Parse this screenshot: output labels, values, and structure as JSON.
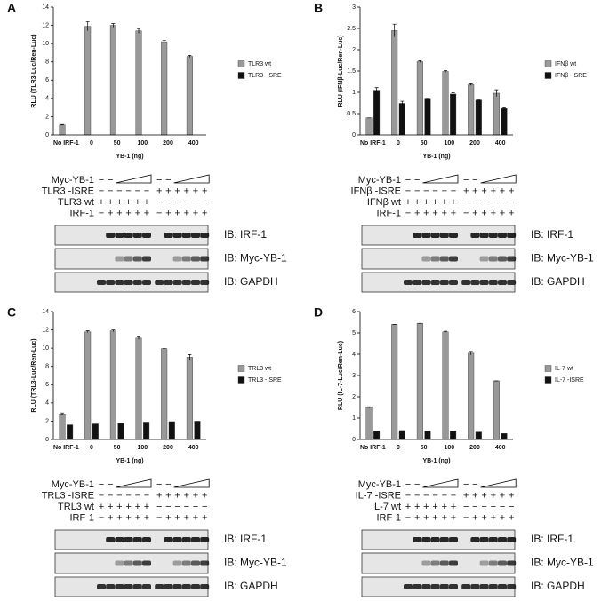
{
  "chart_data": [
    {
      "type": "bar",
      "x_label": "YB-1 (ng)",
      "y_label": "RLU (TLR3-Luc/Ren-Luc)",
      "categories": [
        "No IRF-1",
        "0",
        "50",
        "100",
        "200",
        "400"
      ],
      "series": [
        {
          "name": "TLR3 wt",
          "color": "#999999",
          "values": [
            1.1,
            11.9,
            12.0,
            11.4,
            10.2,
            8.6
          ],
          "errors": [
            0.05,
            0.5,
            0.2,
            0.25,
            0.15,
            0.1
          ]
        },
        {
          "name": "TLR3 -ISRE",
          "color": "#111111",
          "values": [
            null,
            null,
            null,
            null,
            null,
            null
          ]
        }
      ],
      "ylim": [
        0,
        14
      ],
      "yticks": [
        0,
        2,
        4,
        6,
        8,
        10,
        12,
        14
      ]
    },
    {
      "type": "bar",
      "x_label": "YB-1 (ng)",
      "y_label": "RLU (IFNβ-Luc/Ren-Luc)",
      "categories": [
        "No IRF-1",
        "0",
        "50",
        "100",
        "200",
        "400"
      ],
      "series": [
        {
          "name": "IFNβ wt",
          "color": "#999999",
          "values": [
            0.4,
            2.45,
            1.72,
            1.49,
            1.18,
            0.98
          ],
          "errors": [
            0,
            0.15,
            0.02,
            0.02,
            0.02,
            0.08
          ]
        },
        {
          "name": "IFNβ -ISRE",
          "color": "#111111",
          "values": [
            1.05,
            0.74,
            0.86,
            0.96,
            0.82,
            0.62
          ],
          "errors": [
            0.06,
            0.05,
            0,
            0.03,
            0,
            0.02
          ]
        }
      ],
      "ylim": [
        0,
        3
      ],
      "yticks": [
        0,
        0.5,
        1,
        1.5,
        2,
        2.5,
        3
      ]
    },
    {
      "type": "bar",
      "x_label": "YB-1 (ng)",
      "y_label": "RLU (TRL3-Luc/Ren-Luc)",
      "categories": [
        "No IRF-1",
        "0",
        "50",
        "100",
        "200",
        "400"
      ],
      "series": [
        {
          "name": "TRL3 wt",
          "color": "#999999",
          "values": [
            2.8,
            11.8,
            11.9,
            11.1,
            9.95,
            9.0
          ],
          "errors": [
            0.1,
            0.1,
            0.1,
            0.15,
            0,
            0.3
          ]
        },
        {
          "name": "TRL3 -ISRE",
          "color": "#111111",
          "values": [
            1.6,
            1.7,
            1.75,
            1.9,
            1.95,
            2.0
          ]
        }
      ],
      "ylim": [
        0,
        14
      ],
      "yticks": [
        0,
        2,
        4,
        6,
        8,
        10,
        12,
        14
      ]
    },
    {
      "type": "bar",
      "x_label": "YB-1 (ng)",
      "y_label": "RLU (IL-7-Luc/Ren-Luc)",
      "categories": [
        "No IRF-1",
        "0",
        "50",
        "100",
        "200",
        "400"
      ],
      "series": [
        {
          "name": "IL-7 wt",
          "color": "#999999",
          "values": [
            1.5,
            5.4,
            5.45,
            5.05,
            4.05,
            2.75
          ],
          "errors": [
            0.03,
            0,
            0,
            0.03,
            0.08,
            0
          ]
        },
        {
          "name": "IL-7 -ISRE",
          "color": "#111111",
          "values": [
            0.4,
            0.42,
            0.4,
            0.4,
            0.35,
            0.28
          ]
        }
      ],
      "ylim": [
        0,
        6
      ],
      "yticks": [
        0,
        1,
        2,
        3,
        4,
        5,
        6
      ]
    }
  ],
  "panels": [
    {
      "letter": "A",
      "rows": [
        {
          "label": "Myc-YB-1",
          "signs": [
            "−",
            "−",
            null,
            null,
            null,
            null,
            "−",
            "−",
            null,
            null,
            null,
            null
          ]
        },
        {
          "label": "TLR3 -ISRE",
          "signs": [
            "−",
            "−",
            "−",
            "−",
            "−",
            "−",
            "+",
            "+",
            "+",
            "+",
            "+",
            "+"
          ]
        },
        {
          "label": "TLR3 wt",
          "signs": [
            "+",
            "+",
            "+",
            "+",
            "+",
            "+",
            "−",
            "−",
            "−",
            "−",
            "−",
            "−"
          ]
        },
        {
          "label": "IRF-1",
          "signs": [
            "−",
            "+",
            "+",
            "+",
            "+",
            "+",
            "−",
            "+",
            "+",
            "+",
            "+",
            "+"
          ]
        }
      ],
      "blots": [
        "IB: IRF-1",
        "IB: Myc-YB-1",
        "IB: GAPDH"
      ]
    },
    {
      "letter": "B",
      "rows": [
        {
          "label": "Myc-YB-1",
          "signs": [
            "−",
            "−",
            null,
            null,
            null,
            null,
            "−",
            "−",
            null,
            null,
            null,
            null
          ]
        },
        {
          "label": "IFNβ -ISRE",
          "signs": [
            "−",
            "−",
            "−",
            "−",
            "−",
            "−",
            "+",
            "+",
            "+",
            "+",
            "+",
            "+"
          ]
        },
        {
          "label": "IFNβ wt",
          "signs": [
            "+",
            "+",
            "+",
            "+",
            "+",
            "+",
            "−",
            "−",
            "−",
            "−",
            "−",
            "−"
          ]
        },
        {
          "label": "IRF-1",
          "signs": [
            "−",
            "+",
            "+",
            "+",
            "+",
            "+",
            "−",
            "+",
            "+",
            "+",
            "+",
            "+"
          ]
        }
      ],
      "blots": [
        "IB: IRF-1",
        "IB: Myc-YB-1",
        "IB: GAPDH"
      ]
    },
    {
      "letter": "C",
      "rows": [
        {
          "label": "Myc-YB-1",
          "signs": [
            "−",
            "−",
            null,
            null,
            null,
            null,
            "−",
            "−",
            null,
            null,
            null,
            null
          ]
        },
        {
          "label": "TRL3 -ISRE",
          "signs": [
            "−",
            "−",
            "−",
            "−",
            "−",
            "−",
            "+",
            "+",
            "+",
            "+",
            "+",
            "+"
          ]
        },
        {
          "label": "TRL3 wt",
          "signs": [
            "+",
            "+",
            "+",
            "+",
            "+",
            "+",
            "−",
            "−",
            "−",
            "−",
            "−",
            "−"
          ]
        },
        {
          "label": "IRF-1",
          "signs": [
            "−",
            "+",
            "+",
            "+",
            "+",
            "+",
            "−",
            "+",
            "+",
            "+",
            "+",
            "+"
          ]
        }
      ],
      "blots": [
        "IB: IRF-1",
        "IB: Myc-YB-1",
        "IB: GAPDH"
      ]
    },
    {
      "letter": "D",
      "rows": [
        {
          "label": "Myc-YB-1",
          "signs": [
            "−",
            "−",
            null,
            null,
            null,
            null,
            "−",
            "−",
            null,
            null,
            null,
            null
          ]
        },
        {
          "label": "IL-7 -ISRE",
          "signs": [
            "−",
            "−",
            "−",
            "−",
            "−",
            "−",
            "+",
            "+",
            "+",
            "+",
            "+",
            "+"
          ]
        },
        {
          "label": "IL-7 wt",
          "signs": [
            "+",
            "+",
            "+",
            "+",
            "+",
            "+",
            "−",
            "−",
            "−",
            "−",
            "−",
            "−"
          ]
        },
        {
          "label": "IRF-1",
          "signs": [
            "−",
            "+",
            "+",
            "+",
            "+",
            "+",
            "−",
            "+",
            "+",
            "+",
            "+",
            "+"
          ]
        }
      ],
      "blots": [
        "IB: IRF-1",
        "IB: Myc-YB-1",
        "IB: GAPDH"
      ]
    }
  ]
}
